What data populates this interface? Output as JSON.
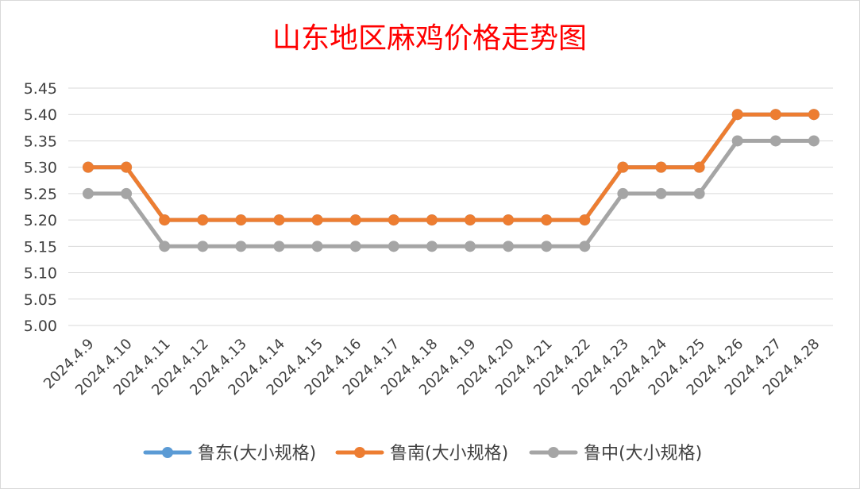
{
  "chart_data": {
    "type": "line",
    "title": "山东地区麻鸡价格走势图",
    "categories": [
      "2024.4.9",
      "2024.4.10",
      "2024.4.11",
      "2024.4.12",
      "2024.4.13",
      "2024.4.14",
      "2024.4.15",
      "2024.4.16",
      "2024.4.17",
      "2024.4.18",
      "2024.4.19",
      "2024.4.20",
      "2024.4.21",
      "2024.4.22",
      "2024.4.23",
      "2024.4.24",
      "2024.4.25",
      "2024.4.26",
      "2024.4.27",
      "2024.4.28"
    ],
    "series": [
      {
        "name": "鲁东(大小规格)",
        "color": "#5b9bd5",
        "values": [
          5.3,
          5.3,
          5.2,
          5.2,
          5.2,
          5.2,
          5.2,
          5.2,
          5.2,
          5.2,
          5.2,
          5.2,
          5.2,
          5.2,
          5.3,
          5.3,
          5.3,
          5.4,
          5.4,
          5.4
        ]
      },
      {
        "name": "鲁南(大小规格)",
        "color": "#ed7d31",
        "values": [
          5.3,
          5.3,
          5.2,
          5.2,
          5.2,
          5.2,
          5.2,
          5.2,
          5.2,
          5.2,
          5.2,
          5.2,
          5.2,
          5.2,
          5.3,
          5.3,
          5.3,
          5.4,
          5.4,
          5.4
        ]
      },
      {
        "name": "鲁中(大小规格)",
        "color": "#a5a5a5",
        "values": [
          5.25,
          5.25,
          5.15,
          5.15,
          5.15,
          5.15,
          5.15,
          5.15,
          5.15,
          5.15,
          5.15,
          5.15,
          5.15,
          5.15,
          5.25,
          5.25,
          5.25,
          5.35,
          5.35,
          5.35
        ]
      }
    ],
    "y_ticks": [
      "5.00",
      "5.05",
      "5.10",
      "5.15",
      "5.20",
      "5.25",
      "5.30",
      "5.35",
      "5.40",
      "5.45"
    ],
    "ylim": [
      5.0,
      5.45
    ],
    "grid": true,
    "legend_position": "bottom",
    "gridline_color": "#d9d9d9"
  }
}
